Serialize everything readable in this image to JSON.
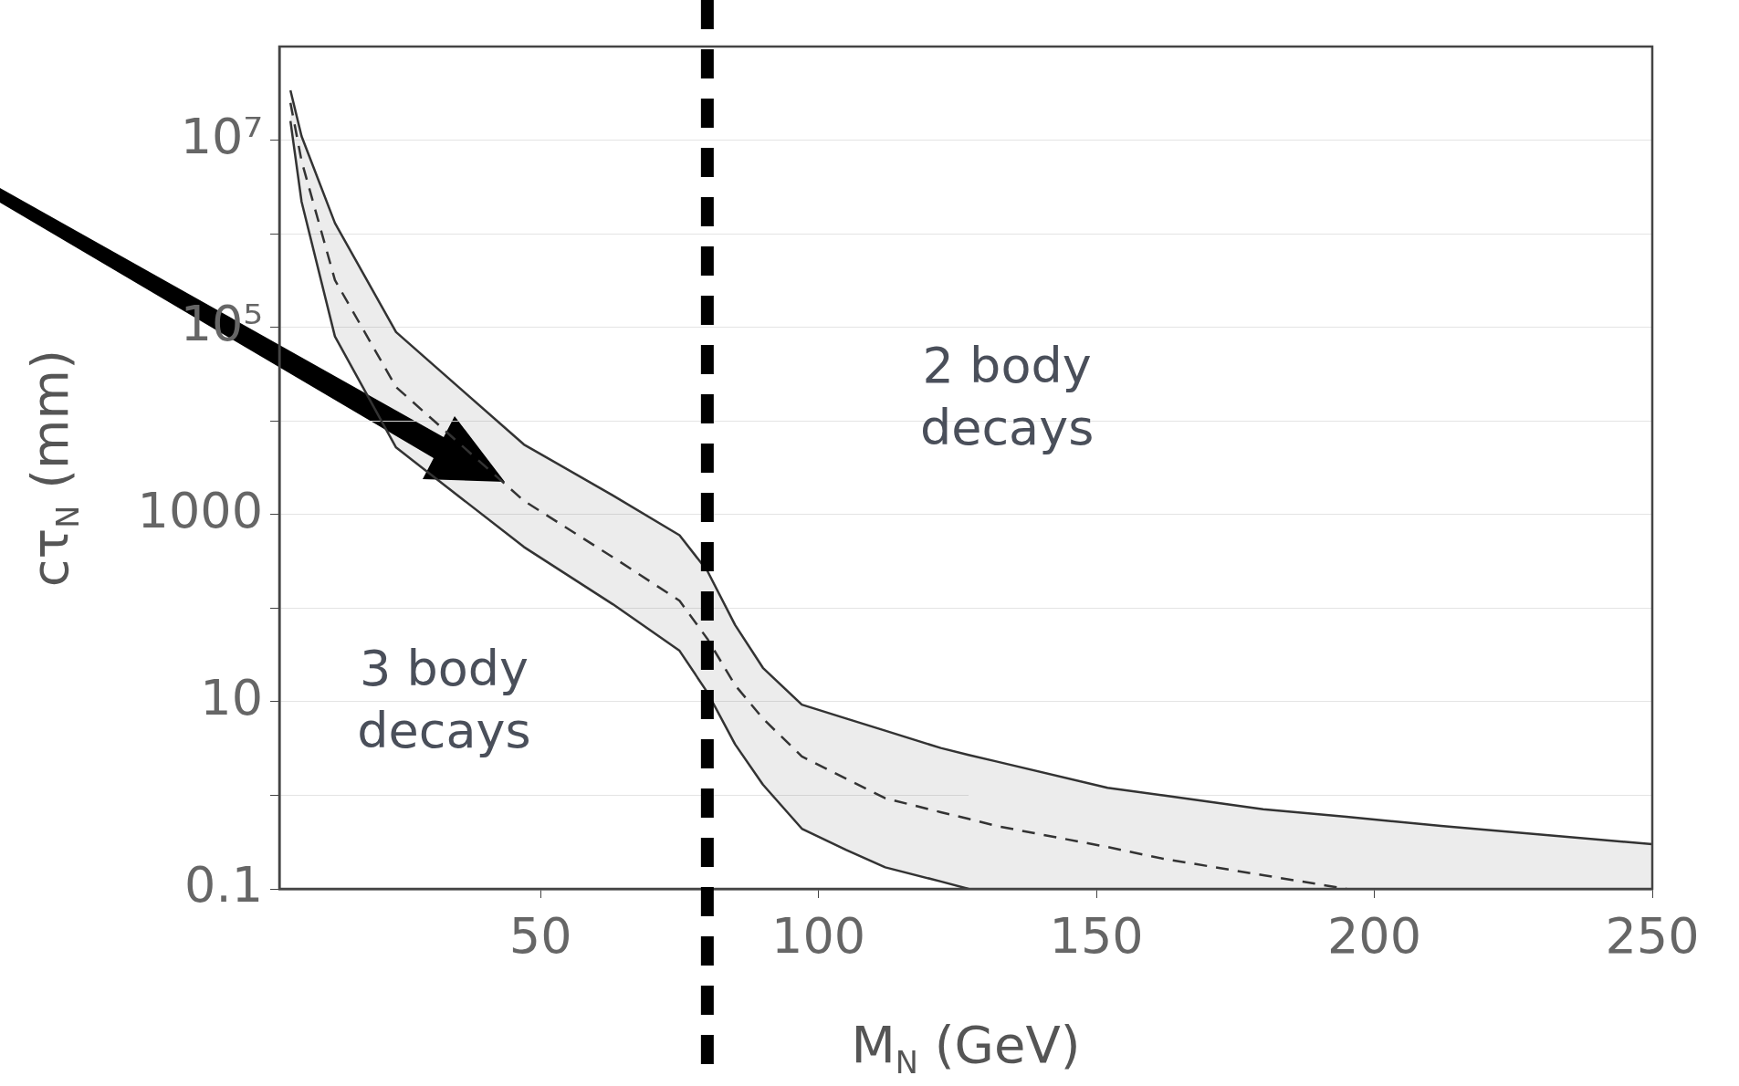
{
  "chart_data": {
    "type": "line",
    "xlabel": "M$_{N}$ (GeV)",
    "ylabel": "cτ$_{N}$ (mm)",
    "series": [
      {
        "color": "#333333",
        "line_style": "dashed",
        "x": [
          5,
          7,
          13,
          24,
          47,
          63,
          75,
          80,
          85,
          90,
          97,
          105,
          112,
          122,
          127,
          132,
          152,
          162,
          180,
          195
        ],
        "values": [
          25000000,
          6000000,
          320000,
          23000,
          1400,
          350,
          120,
          47,
          15,
          6.6,
          2.6,
          1.5,
          0.93,
          0.66,
          0.56,
          0.47,
          0.28,
          0.21,
          0.14,
          0.1
        ],
        "upper": [
          34000000,
          11000000,
          1300000,
          89000,
          5600,
          1600,
          600,
          250,
          66,
          23,
          9.3,
          6.6,
          4.9,
          3.2,
          2.7,
          null,
          null,
          null,
          null,
          null
        ],
        "lower": [
          16000000,
          2200000,
          80000,
          5200,
          450,
          110,
          35,
          12.6,
          3.5,
          1.3,
          0.44,
          0.26,
          0.17,
          0.12,
          0.1,
          null,
          null,
          null,
          null,
          null
        ]
      },
      {
        "color": "#333333",
        "line_style": "solid",
        "x": [
          5,
          7,
          13,
          24,
          47,
          63,
          75,
          80,
          85,
          90,
          97,
          105,
          112,
          122,
          127,
          132,
          152,
          162,
          180,
          195,
          212,
          250
        ],
        "values": [
          34000000,
          11000000,
          1300000,
          89000,
          5600,
          1600,
          600,
          250,
          66,
          23,
          9.3,
          6.6,
          4.9,
          3.2,
          2.7,
          2.3,
          1.2,
          1.0,
          0.71,
          0.59,
          0.47,
          0.3
        ]
      },
      {
        "color": "#333333",
        "line_style": "solid",
        "x": [
          5,
          7,
          13,
          24,
          47,
          63,
          75,
          80,
          85,
          90,
          97,
          105,
          112,
          122,
          127
        ],
        "values": [
          16000000,
          2200000,
          80000,
          5200,
          450,
          110,
          35,
          12.6,
          3.5,
          1.3,
          0.44,
          0.26,
          0.17,
          0.12,
          0.1
        ]
      },
      {
        "type": "area",
        "color": "#ececec",
        "x": [
          127,
          132,
          152,
          162,
          180,
          195,
          212,
          250
        ],
        "values": [
          2.7,
          2.3,
          1.2,
          1.0,
          0.71,
          0.59,
          0.47,
          0.3
        ]
      }
    ],
    "log": "y",
    "grid": "y",
    "legend": false,
    "marker": "none",
    "xlim": [
      3,
      250
    ],
    "xticks": [
      50,
      100,
      150,
      200,
      250
    ],
    "ylim": [
      0.1,
      100000000
    ],
    "yticks": [
      0.1,
      {
        "value": 1,
        "label": null
      },
      10,
      {
        "value": 100,
        "label": null
      },
      1000,
      {
        "value": 10000,
        "label": null
      },
      {
        "value": 100000,
        "label": "10⁵"
      },
      {
        "value": 1000000,
        "label": null
      },
      {
        "value": 10000000,
        "label": "10⁷"
      }
    ],
    "ref_lines": [
      {
        "axis": "x",
        "value": 80,
        "color": "#000000",
        "line_style": "dashed"
      }
    ],
    "annotations": [
      "3 body decays",
      "2 body decays"
    ]
  }
}
